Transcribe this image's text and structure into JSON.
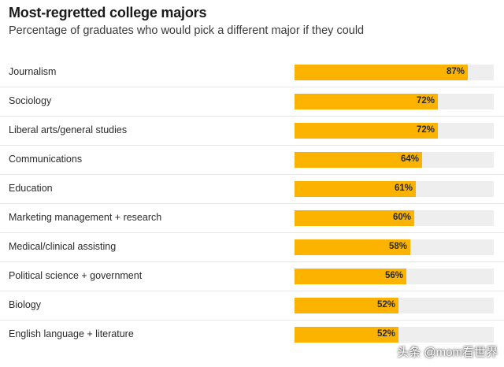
{
  "title": "Most-regretted college majors",
  "subtitle": "Percentage of graduates who would pick a different major if they could",
  "watermark": "头条 @mom看世界",
  "colors": {
    "bar": "#fbb300",
    "track": "#eeeeee"
  },
  "chart_data": {
    "type": "bar",
    "orientation": "horizontal",
    "title": "Most-regretted college majors",
    "subtitle": "Percentage of graduates who would pick a different major if they could",
    "xlim": [
      0,
      100
    ],
    "categories": [
      "Journalism",
      "Sociology",
      "Liberal arts/general studies",
      "Communications",
      "Education",
      "Marketing management + research",
      "Medical/clinical assisting",
      "Political science + government",
      "Biology",
      "English language + literature"
    ],
    "values": [
      87,
      72,
      72,
      64,
      61,
      60,
      58,
      56,
      52,
      52
    ],
    "value_labels": [
      "87%",
      "72%",
      "72%",
      "64%",
      "61%",
      "60%",
      "58%",
      "56%",
      "52%",
      "52%"
    ]
  }
}
